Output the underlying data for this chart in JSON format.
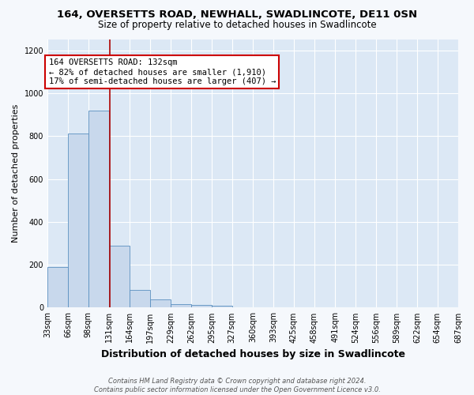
{
  "title": "164, OVERSETTS ROAD, NEWHALL, SWADLINCOTE, DE11 0SN",
  "subtitle": "Size of property relative to detached houses in Swadlincote",
  "xlabel": "Distribution of detached houses by size in Swadlincote",
  "ylabel": "Number of detached properties",
  "footer_line1": "Contains HM Land Registry data © Crown copyright and database right 2024.",
  "footer_line2": "Contains public sector information licensed under the Open Government Licence v3.0.",
  "annotation_line1": "164 OVERSETTS ROAD: 132sqm",
  "annotation_line2": "← 82% of detached houses are smaller (1,910)",
  "annotation_line3": "17% of semi-detached houses are larger (407) →",
  "bar_edges": [
    33,
    66,
    98,
    131,
    164,
    197,
    229,
    262,
    295,
    327,
    360,
    393,
    425,
    458,
    491,
    524,
    556,
    589,
    622,
    654,
    687
  ],
  "bar_heights": [
    190,
    810,
    920,
    290,
    82,
    38,
    18,
    12,
    8,
    0,
    0,
    0,
    0,
    0,
    0,
    0,
    0,
    0,
    0,
    0
  ],
  "bar_color": "#c8d8ec",
  "bar_edge_color": "#5a8fc0",
  "vline_x": 132,
  "vline_color": "#aa0000",
  "annotation_box_facecolor": "#ffffff",
  "annotation_box_edgecolor": "#cc0000",
  "ylim": [
    0,
    1250
  ],
  "yticks": [
    0,
    200,
    400,
    600,
    800,
    1000,
    1200
  ],
  "fig_bg_color": "#f5f8fc",
  "plot_bg_color": "#dce8f5",
  "title_fontsize": 9.5,
  "subtitle_fontsize": 8.5,
  "xlabel_fontsize": 9,
  "ylabel_fontsize": 8,
  "tick_fontsize": 7,
  "annotation_fontsize": 7.5,
  "footer_fontsize": 6
}
